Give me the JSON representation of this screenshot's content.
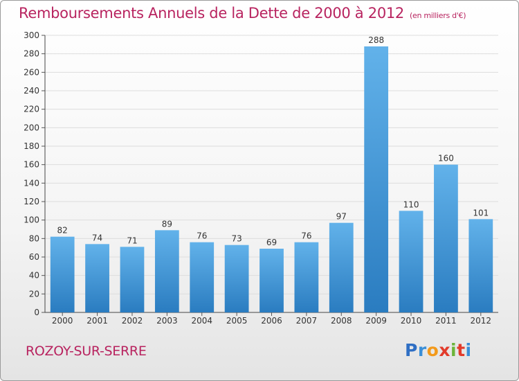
{
  "header": {
    "title": "Remboursements Annuels de la Dette de 2000 à 2012",
    "unit": "(en milliers d'€)"
  },
  "footer": {
    "commune": "ROZOY-SUR-SERRE",
    "logo_text": "Proxiti"
  },
  "colors": {
    "bar_top": "#62b2ea",
    "bar_bottom": "#2a7cc0",
    "title": "#b8235f",
    "grid": "#dddddd"
  },
  "chart_data": {
    "type": "bar",
    "title": "Remboursements Annuels de la Dette de 2000 à 2012",
    "xlabel": "",
    "ylabel": "",
    "categories": [
      "2000",
      "2001",
      "2002",
      "2003",
      "2004",
      "2005",
      "2006",
      "2007",
      "2008",
      "2009",
      "2010",
      "2011",
      "2012"
    ],
    "values": [
      82,
      74,
      71,
      89,
      76,
      73,
      69,
      76,
      97,
      288,
      110,
      160,
      101
    ],
    "ylim": [
      0,
      300
    ],
    "yticks": [
      0,
      20,
      40,
      60,
      80,
      100,
      120,
      140,
      160,
      180,
      200,
      220,
      240,
      260,
      280,
      300
    ],
    "grid": true,
    "data_labels": true
  }
}
